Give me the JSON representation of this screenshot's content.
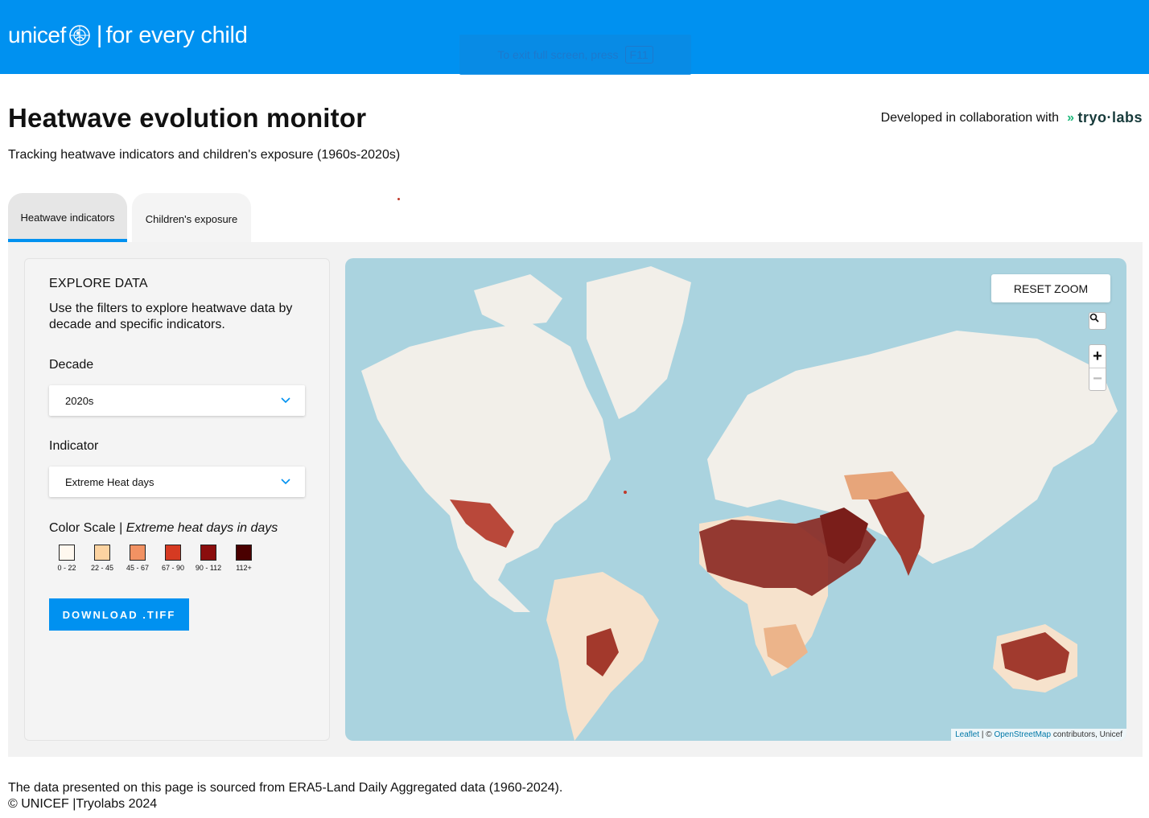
{
  "header": {
    "brand": "unicef",
    "separator": "|",
    "tagline": "for every child",
    "fullscreen_hint": "To exit full screen, press",
    "fullscreen_key": "F11"
  },
  "page": {
    "title": "Heatwave evolution monitor",
    "subtitle": "Tracking heatwave indicators and children's exposure (1960s-2020s)",
    "collab_text": "Developed in collaboration with",
    "partner_logo": "tryo·labs"
  },
  "tabs": [
    {
      "label": "Heatwave indicators",
      "active": true
    },
    {
      "label": "Children's exposure",
      "active": false
    }
  ],
  "filters": {
    "heading": "EXPLORE DATA",
    "description": "Use the filters to explore heatwave data by decade and specific indicators.",
    "decade_label": "Decade",
    "decade_value": "2020s",
    "indicator_label": "Indicator",
    "indicator_value": "Extreme Heat days",
    "scale_label": "Color Scale |",
    "scale_unit": "Extreme heat days in days",
    "scale": [
      {
        "label": "0 - 22",
        "color": "#fff8ef"
      },
      {
        "label": "22 - 45",
        "color": "#fcd3a1"
      },
      {
        "label": "45 - 67",
        "color": "#f29263"
      },
      {
        "label": "67 - 90",
        "color": "#d63a22"
      },
      {
        "label": "90 - 112",
        "color": "#8b0d0d"
      },
      {
        "label": "112+",
        "color": "#4a0000"
      }
    ],
    "download_label": "DOWNLOAD .TIFF"
  },
  "map": {
    "reset_zoom": "RESET ZOOM",
    "zoom_in": "+",
    "zoom_out": "−",
    "attribution_leaflet": "Leaflet",
    "attribution_sep": "| ©",
    "attribution_osm": "OpenStreetMap",
    "attribution_rest": "contributors, Unicef",
    "ocean_color": "#aad3df",
    "land_color": "#f2efe9"
  },
  "footer": {
    "source": "The data presented on this page is sourced from ERA5-Land Daily Aggregated data (1960-2024).",
    "copyright": "© UNICEF |Tryolabs 2024"
  }
}
